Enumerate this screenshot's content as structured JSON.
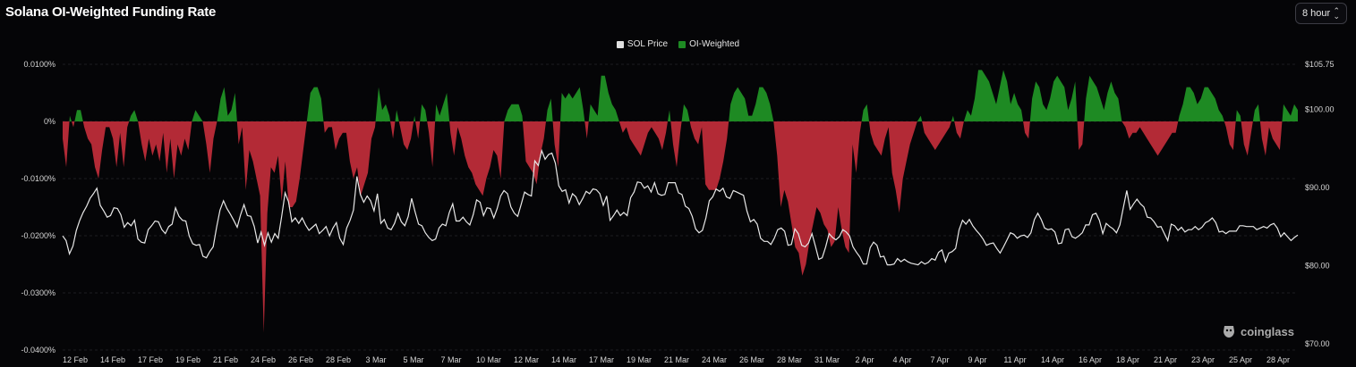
{
  "header": {
    "title": "Solana OI-Weighted Funding Rate",
    "interval_label": "8 hour"
  },
  "colors": {
    "positive": "#1e8a23",
    "negative": "#b32a36",
    "price_line": "#e8e8e8",
    "grid": "#1d1d22",
    "background": "#050507"
  },
  "watermark": {
    "text": "coinglass",
    "icon": "coinglass-logo-icon"
  },
  "chart_data": {
    "type": "area",
    "title": "Solana OI-Weighted Funding Rate",
    "legend": [
      {
        "name": "SOL Price",
        "color": "#e0e0e0"
      },
      {
        "name": "OI-Weighted",
        "color": "#1e8a23"
      }
    ],
    "legend_position": "top-center",
    "grid": true,
    "x_ticks": [
      "12 Feb",
      "14 Feb",
      "17 Feb",
      "19 Feb",
      "21 Feb",
      "24 Feb",
      "26 Feb",
      "28 Feb",
      "3 Mar",
      "5 Mar",
      "7 Mar",
      "10 Mar",
      "12 Mar",
      "14 Mar",
      "17 Mar",
      "19 Mar",
      "21 Mar",
      "24 Mar",
      "26 Mar",
      "28 Mar",
      "31 Mar",
      "2 Apr",
      "4 Apr",
      "7 Apr",
      "9 Apr",
      "11 Apr",
      "14 Apr",
      "16 Apr",
      "18 Apr",
      "21 Apr",
      "23 Apr",
      "25 Apr",
      "28 Apr"
    ],
    "y_left": {
      "ticks": [
        "0.0100%",
        "0%",
        "-0.0100%",
        "-0.0200%",
        "-0.0300%",
        "-0.0400%"
      ],
      "range": [
        -0.04,
        0.01
      ]
    },
    "y_right": {
      "ticks": [
        "$105.75",
        "$100.00",
        "$90.00",
        "$80.00",
        "$70.00"
      ],
      "range": [
        70,
        105.75
      ]
    },
    "series": [
      {
        "name": "OI-Weighted",
        "unit": "%",
        "values": [
          -0.003,
          -0.008,
          0.001,
          -0.001,
          0.002,
          0.002,
          -0.001,
          -0.003,
          -0.004,
          -0.008,
          -0.01,
          -0.005,
          -0.001,
          -0.001,
          -0.003,
          -0.008,
          -0.002,
          -0.008,
          -0.001,
          0.001,
          0.002,
          0,
          -0.004,
          -0.007,
          -0.003,
          -0.006,
          -0.004,
          -0.007,
          -0.002,
          -0.009,
          -0.003,
          -0.01,
          -0.004,
          -0.006,
          -0.003,
          -0.005,
          0,
          0.002,
          0.001,
          0,
          -0.004,
          -0.009,
          -0.003,
          0,
          0.004,
          0.006,
          0.001,
          0.002,
          0.005,
          -0.004,
          -0.001,
          -0.012,
          -0.005,
          -0.007,
          -0.01,
          -0.013,
          -0.037,
          -0.016,
          -0.008,
          -0.009,
          -0.006,
          -0.014,
          -0.007,
          -0.015,
          -0.015,
          -0.014,
          -0.01,
          -0.005,
          0,
          0.005,
          0.006,
          0.006,
          0.004,
          -0.002,
          -0.001,
          -0.001,
          -0.005,
          -0.003,
          -0.002,
          -0.002,
          -0.007,
          -0.01,
          -0.008,
          -0.013,
          -0.011,
          -0.009,
          -0.003,
          -0.001,
          0.006,
          0.002,
          0.003,
          0.001,
          -0.003,
          0.002,
          -0.001,
          -0.004,
          -0.005,
          -0.003,
          0.001,
          -0.003,
          0.003,
          0.002,
          -0.002,
          -0.008,
          0.003,
          0.001,
          0.003,
          0.005,
          -0.002,
          -0.006,
          -0.001,
          -0.003,
          -0.006,
          -0.008,
          -0.009,
          -0.011,
          -0.012,
          -0.013,
          -0.01,
          -0.008,
          -0.005,
          -0.006,
          -0.01,
          0,
          0.002,
          0.003,
          0.003,
          0.003,
          0.001,
          -0.007,
          -0.008,
          -0.009,
          -0.011,
          -0.006,
          -0.003,
          0.002,
          0.004,
          -0.004,
          -0.008,
          0.005,
          0.004,
          0.005,
          0.004,
          0.005,
          0.006,
          0.002,
          -0.003,
          0.003,
          0.002,
          0.001,
          0.008,
          0.008,
          0.005,
          0.003,
          0.002,
          0,
          -0.002,
          -0.001,
          -0.003,
          -0.004,
          -0.005,
          -0.006,
          -0.004,
          -0.002,
          -0.001,
          -0.002,
          -0.003,
          -0.005,
          -0.002,
          0.002,
          -0.004,
          -0.008,
          -0.002,
          0.003,
          0.002,
          -0.001,
          -0.003,
          -0.004,
          -0.001,
          -0.011,
          -0.012,
          -0.012,
          -0.012,
          -0.01,
          -0.007,
          -0.003,
          0.003,
          0.005,
          0.006,
          0.005,
          0.004,
          0.001,
          0.001,
          0.003,
          0.006,
          0.006,
          0.005,
          0.003,
          0,
          -0.006,
          -0.015,
          -0.012,
          -0.014,
          -0.018,
          -0.022,
          -0.023,
          -0.027,
          -0.025,
          -0.021,
          -0.018,
          -0.015,
          -0.016,
          -0.018,
          -0.019,
          -0.022,
          -0.021,
          -0.015,
          -0.019,
          -0.022,
          -0.023,
          -0.004,
          -0.009,
          -0.002,
          0.002,
          0.003,
          -0.002,
          -0.004,
          -0.005,
          -0.006,
          -0.003,
          -0.001,
          -0.009,
          -0.012,
          -0.016,
          -0.01,
          -0.007,
          -0.004,
          -0.002,
          0,
          0.001,
          -0.002,
          -0.003,
          -0.004,
          -0.005,
          -0.004,
          -0.003,
          -0.002,
          -0.001,
          0.001,
          -0.002,
          -0.003,
          0,
          0.002,
          0.001,
          0.004,
          0.009,
          0.009,
          0.008,
          0.007,
          0.005,
          0.003,
          0.006,
          0.009,
          0.007,
          0.003,
          0.005,
          0.003,
          0.002,
          -0.002,
          -0.003,
          0.004,
          0.007,
          0.006,
          0.003,
          0.002,
          0.004,
          0.007,
          0.008,
          0.007,
          0.006,
          0.002,
          0.004,
          0.007,
          -0.005,
          -0.004,
          0.004,
          0.008,
          0.007,
          0.006,
          0.004,
          0.002,
          0.005,
          0.007,
          0.005,
          0.004,
          0,
          -0.001,
          -0.003,
          -0.002,
          -0.002,
          -0.001,
          -0.002,
          -0.003,
          -0.004,
          -0.005,
          -0.006,
          -0.005,
          -0.004,
          -0.003,
          -0.002,
          -0.002,
          0.001,
          0.003,
          0.006,
          0.006,
          0.005,
          0.003,
          0.004,
          0.006,
          0.006,
          0.005,
          0.004,
          0.002,
          0.001,
          -0.001,
          -0.004,
          -0.005,
          0.002,
          0.001,
          -0.004,
          -0.006,
          -0.002,
          0.002,
          0.003,
          -0.003,
          -0.006,
          -0.001,
          -0.003,
          -0.004,
          -0.005,
          0.003,
          0.002,
          0.001,
          0.003,
          0.002
        ]
      },
      {
        "name": "SOL Price",
        "unit": "$",
        "values": [
          83.8,
          83.2,
          81.5,
          82.5,
          84.5,
          85.8,
          86.8,
          87.6,
          88.6,
          89.2,
          89.9,
          87.7,
          87,
          86.2,
          86.4,
          87.4,
          87.3,
          86.5,
          84.9,
          85.5,
          85.1,
          85.8,
          83.4,
          83,
          82.9,
          84.6,
          85.1,
          85.7,
          85.6,
          84.6,
          84.1,
          85,
          85.3,
          87.4,
          86.3,
          85.8,
          85.7,
          83.8,
          82.8,
          82.6,
          82.7,
          81.2,
          81,
          81.8,
          82.4,
          84.9,
          87.1,
          88.3,
          87.3,
          86.6,
          85.8,
          84.9,
          86.5,
          87.8,
          86.4,
          86.3,
          85,
          82.9,
          84.3,
          82.6,
          84.2,
          83,
          84.1,
          83.5,
          86.3,
          89.3,
          88.2,
          85.6,
          86.1,
          85.4,
          86.1,
          85.2,
          84.5,
          84.9,
          85.3,
          84.1,
          84.5,
          85,
          83.8,
          84.8,
          85.5,
          83.5,
          82.7,
          84.8,
          85.8,
          87.1,
          91.4,
          89.1,
          88.1,
          88.9,
          88.3,
          87,
          89.2,
          85.4,
          85.9,
          84.8,
          84.6,
          85.4,
          86.7,
          85.6,
          85.1,
          86.3,
          88.6,
          86.9,
          85.3,
          85.1,
          84.2,
          83.6,
          83.2,
          83.4,
          84.8,
          85.3,
          85.1,
          86.8,
          87.9,
          85.7,
          85.7,
          86.2,
          85.6,
          85.2,
          86.5,
          88.4,
          88.1,
          86.4,
          87.4,
          87.3,
          86.1,
          87.3,
          88.9,
          89.6,
          89.2,
          87.5,
          86.7,
          86.3,
          87.8,
          89.4,
          89.1,
          88.9,
          93.4,
          92.8,
          94.7,
          93.6,
          94.2,
          94.4,
          93.1,
          90.2,
          89.5,
          89.7,
          88,
          89.2,
          88.8,
          87.8,
          88.6,
          89.5,
          89.2,
          89.8,
          89.7,
          89.2,
          87.7,
          88.9,
          85.8,
          86.4,
          87.1,
          86.4,
          86.8,
          86.4,
          88.7,
          89.4,
          90.7,
          90.6,
          89.9,
          90.2,
          89.4,
          90.6,
          89.2,
          89,
          89.1,
          90.6,
          90.6,
          90.6,
          89.3,
          89.1,
          87.6,
          87.3,
          86.3,
          84.7,
          84.2,
          84.5,
          86.1,
          88.3,
          88.8,
          89.8,
          89.5,
          89.9,
          88.8,
          88.6,
          89.6,
          89.4,
          89.2,
          89,
          87,
          85.6,
          85.9,
          85.3,
          83.5,
          83.1,
          83.1,
          82.7,
          83.5,
          84.6,
          84.8,
          84.4,
          82.6,
          82.7,
          84.7,
          84.1,
          82.6,
          82.4,
          82.9,
          84.1,
          82.5,
          80.8,
          81,
          82.4,
          84.1,
          83.6,
          83.3,
          83.7,
          84.6,
          84.3,
          83.8,
          82.4,
          81.7,
          81.1,
          80.2,
          80.2,
          82.3,
          83,
          82.6,
          81.1,
          81.2,
          80.1,
          80.1,
          80.2,
          80.9,
          80.5,
          80.8,
          80.5,
          80.3,
          80.2,
          80.1,
          80.5,
          80.2,
          80.4,
          80.9,
          80.7,
          81.7,
          82,
          80.5,
          81.6,
          81.8,
          82.2,
          84.6,
          85.8,
          85.3,
          85.9,
          85.1,
          84.5,
          84,
          83.4,
          82.6,
          82.8,
          82.9,
          82.2,
          81.6,
          82.4,
          83.3,
          84.2,
          84,
          83.5,
          83.8,
          83.9,
          83.6,
          84.2,
          85.9,
          86.7,
          85.9,
          84.8,
          84.6,
          84.7,
          84.3,
          82.8,
          82.9,
          84.6,
          84.7,
          83.7,
          83.5,
          83.8,
          84.2,
          85.2,
          85.2,
          86.5,
          86.7,
          85.8,
          84.1,
          85.4,
          85,
          84.7,
          84.2,
          85.2,
          87.4,
          89.6,
          87.2,
          87.9,
          88.5,
          87.9,
          87.5,
          86.2,
          86.1,
          85.6,
          84.9,
          85,
          84.1,
          83.2,
          85.3,
          85.1,
          84.5,
          84.9,
          84.3,
          84.6,
          84.6,
          85,
          84.6,
          84.9,
          85.5,
          85.7,
          86.1,
          85.5,
          84.3,
          84.4,
          84.1,
          84.4,
          84.4,
          84.4,
          85.1,
          85.1,
          85,
          85,
          85,
          84.6,
          84.8,
          85,
          84.8,
          85.2,
          85.4,
          84.8,
          83.7,
          84.2,
          83.7,
          83.2,
          83.6,
          83.9
        ]
      }
    ]
  }
}
